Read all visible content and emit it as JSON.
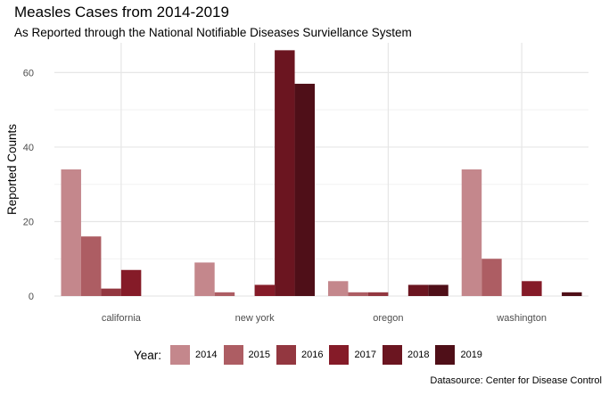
{
  "title": "Measles Cases from 2014-2019",
  "subtitle": "As Reported through the National Notifiable Diseases Surviellance System",
  "caption": "Datasource: Center for Disease Control",
  "chart_data": {
    "type": "bar",
    "title": "Measles Cases from 2014-2019",
    "subtitle": "As Reported through the National Notifiable Diseases Surviellance System",
    "xlabel": "",
    "ylabel": "Reported Counts",
    "ylim": [
      0,
      68
    ],
    "yticks": [
      0,
      20,
      40,
      60
    ],
    "grid": true,
    "legend_position": "bottom",
    "legend_title": "Year:",
    "categories": [
      "california",
      "new york",
      "oregon",
      "washington"
    ],
    "series": [
      {
        "name": "2014",
        "color": "#c4878c",
        "values": [
          34,
          9,
          4,
          34
        ]
      },
      {
        "name": "2015",
        "color": "#ad5d63",
        "values": [
          16,
          1,
          1,
          10
        ]
      },
      {
        "name": "2016",
        "color": "#933740",
        "values": [
          2,
          0,
          1,
          0
        ]
      },
      {
        "name": "2017",
        "color": "#851b28",
        "values": [
          7,
          3,
          0,
          4
        ]
      },
      {
        "name": "2018",
        "color": "#6b1520",
        "values": [
          0,
          66,
          3,
          0
        ]
      },
      {
        "name": "2019",
        "color": "#4f0f18",
        "values": [
          0,
          57,
          3,
          1
        ]
      }
    ]
  }
}
